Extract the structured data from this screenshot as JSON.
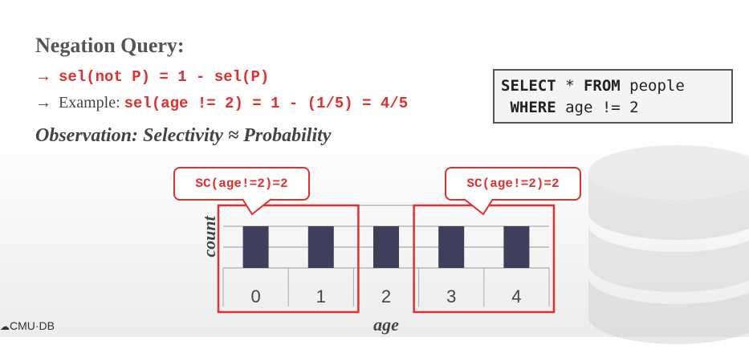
{
  "slide": {
    "title": "Negation Query:",
    "bullets": [
      {
        "arrow": "→",
        "code": "sel(not P) = 1 - sel(P)"
      },
      {
        "arrow": "→",
        "prefix": "Example: ",
        "code": "sel(age != 2) = 1 - (1/5) = 4/5"
      }
    ],
    "observation": "Observation: Selectivity ≈ Probability",
    "sql": {
      "line1": {
        "kw1": "SELECT",
        "mid": " * ",
        "kw2": "FROM",
        "rest": " people"
      },
      "line2": {
        "lead": " ",
        "kw": "WHERE",
        "rest": " age != 2"
      }
    },
    "callouts": {
      "left": "SC(age!=2)=2",
      "right": "SC(age!=2)=2"
    },
    "footer": {
      "icon": "☁",
      "text": "CMU·DB"
    }
  },
  "chart_data": {
    "type": "bar",
    "categories": [
      "0",
      "1",
      "2",
      "3",
      "4"
    ],
    "values": [
      1,
      1,
      1,
      1,
      1
    ],
    "xlabel": "age",
    "ylabel": "count",
    "ylim": [
      0,
      1.5
    ],
    "grid": true,
    "highlight_groups": [
      [
        "0",
        "1"
      ],
      [
        "3",
        "4"
      ]
    ],
    "bar_color": "#3f3f5c",
    "highlight_color": "#e03030"
  }
}
